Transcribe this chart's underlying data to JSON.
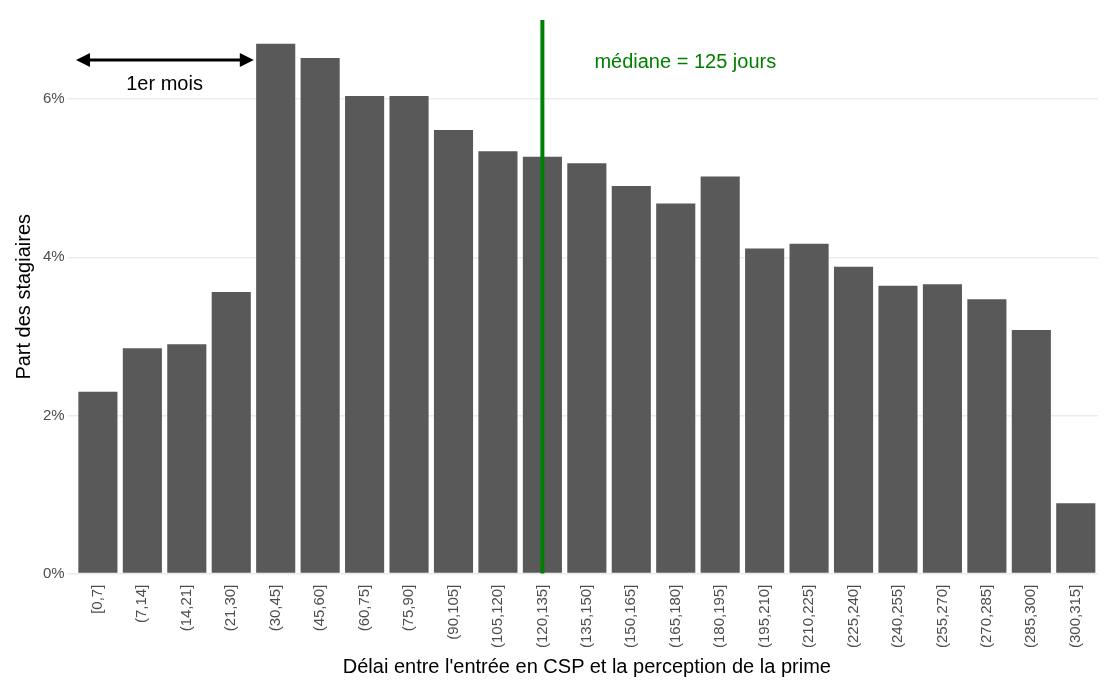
{
  "chart_data": {
    "type": "bar",
    "xlabel": "Délai entre l'entrée en CSP et la perception de la prime",
    "ylabel": "Part des stagiaires",
    "categories": [
      "[0,7]",
      "(7,14]",
      "(14,21]",
      "(21,30]",
      "(30,45]",
      "(45,60]",
      "(60,75]",
      "(75,90]",
      "(90,105]",
      "(105,120]",
      "(120,135]",
      "(135,150]",
      "(150,165]",
      "(165,180]",
      "(180,195]",
      "(195,210]",
      "(210,225]",
      "(225,240]",
      "(240,255]",
      "(255,270]",
      "(270,285]",
      "(285,300]",
      "(300,315]"
    ],
    "values": [
      2.3,
      2.85,
      2.9,
      3.56,
      6.7,
      6.52,
      6.04,
      6.04,
      5.61,
      5.34,
      5.27,
      5.19,
      4.9,
      4.68,
      5.02,
      4.11,
      4.17,
      3.88,
      3.64,
      3.66,
      3.47,
      3.08,
      0.89
    ],
    "color": "#595959",
    "ylim": [
      0,
      7
    ],
    "yticks": [
      {
        "value": 0,
        "label": "0%"
      },
      {
        "value": 2,
        "label": "2%"
      },
      {
        "value": 4,
        "label": "4%"
      },
      {
        "value": 6,
        "label": "6%"
      }
    ],
    "grid": "y",
    "ref_lines": [
      {
        "axis": "x",
        "value": "(120,135]",
        "label": "médiane = 125 jours",
        "color": "#008000"
      }
    ],
    "annotations": [
      "1er mois"
    ]
  }
}
